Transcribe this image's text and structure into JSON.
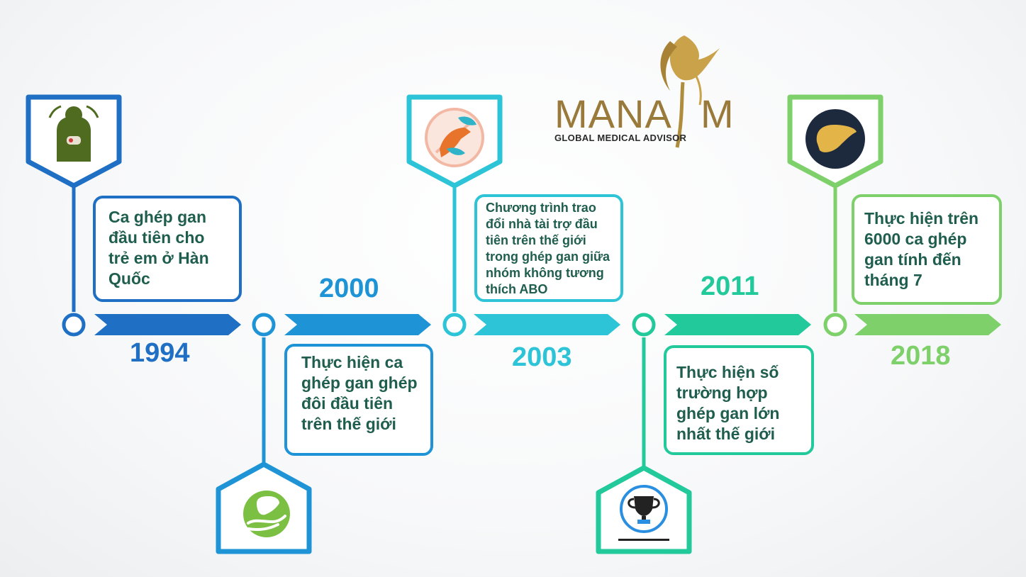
{
  "brand": {
    "name": "MANAEM",
    "name_left": "MANA",
    "name_right": "M",
    "tagline": "GLOBAL MEDICAL ADVISOR",
    "color": "#b08d3c"
  },
  "milestones": [
    {
      "year": "1994",
      "text": "Ca ghép gan đầu tiên cho trẻ em ở Hàn Quốc",
      "color": "#1f6fc4",
      "icon": "liver-body-icon"
    },
    {
      "year": "2000",
      "text": "Thực hiện ca ghép gan ghép đôi đầu tiên trên thế giới",
      "color": "#1e94d6",
      "icon": "liver-hand-icon"
    },
    {
      "year": "2003",
      "text": "Chương trình trao đổi nhà tài trợ đầu tiên trên thế giới trong ghép gan giữa nhóm không tương thích ABO",
      "color": "#2cc4d6",
      "icon": "exchange-hands-icon"
    },
    {
      "year": "2011",
      "text": "Thực hiện số trường hợp ghép gan lớn nhất thế giới",
      "color": "#22c99a",
      "icon": "trophy-icon"
    },
    {
      "year": "2018",
      "text": "Thực hiện trên 6000 ca ghép gan tính đến tháng 7",
      "color": "#7ed06a",
      "icon": "liver-icon"
    }
  ]
}
